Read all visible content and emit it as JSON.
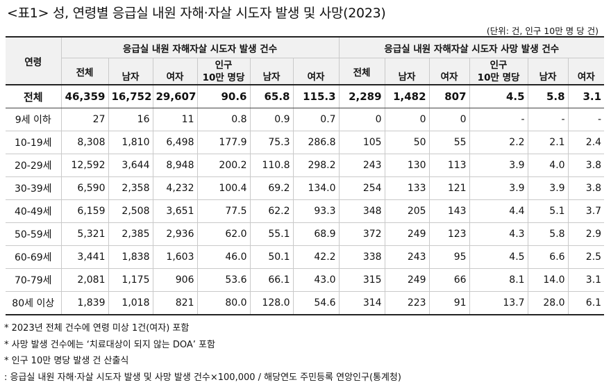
{
  "title": "<표1> 성, 연령별 응급실 내원 자해·자살 시도자 발생 및 사망(2023)",
  "unit": "(단위: 건, 인구 10만 명 당 건)",
  "header": {
    "age": "연령",
    "group_attempts": "응급실 내원 자해자살 시도자 발생 건수",
    "group_deaths": "응급실 내원 자해자살 시도자 사망 발생 건수",
    "total": "전체",
    "male": "남자",
    "female": "여자",
    "per_pop_line1": "인구",
    "per_pop_line2": "10만 명당"
  },
  "rows": [
    {
      "age": "전체",
      "cells": [
        "46,359",
        "16,752",
        "29,607",
        "90.6",
        "65.8",
        "115.3",
        "2,289",
        "1,482",
        "807",
        "4.5",
        "5.8",
        "3.1"
      ]
    },
    {
      "age": "9세 이하",
      "cells": [
        "27",
        "16",
        "11",
        "0.8",
        "0.9",
        "0.7",
        "0",
        "0",
        "0",
        "-",
        "-",
        "-"
      ]
    },
    {
      "age": "10-19세",
      "cells": [
        "8,308",
        "1,810",
        "6,498",
        "177.9",
        "75.3",
        "286.8",
        "105",
        "50",
        "55",
        "2.2",
        "2.1",
        "2.4"
      ]
    },
    {
      "age": "20-29세",
      "cells": [
        "12,592",
        "3,644",
        "8,948",
        "200.2",
        "110.8",
        "298.2",
        "243",
        "130",
        "113",
        "3.9",
        "4.0",
        "3.8"
      ]
    },
    {
      "age": "30-39세",
      "cells": [
        "6,590",
        "2,358",
        "4,232",
        "100.4",
        "69.2",
        "134.0",
        "254",
        "133",
        "121",
        "3.9",
        "3.9",
        "3.8"
      ]
    },
    {
      "age": "40-49세",
      "cells": [
        "6,159",
        "2,508",
        "3,651",
        "77.5",
        "62.2",
        "93.3",
        "348",
        "205",
        "143",
        "4.4",
        "5.1",
        "3.7"
      ]
    },
    {
      "age": "50-59세",
      "cells": [
        "5,321",
        "2,385",
        "2,936",
        "62.0",
        "55.1",
        "68.9",
        "372",
        "249",
        "123",
        "4.3",
        "5.8",
        "2.9"
      ]
    },
    {
      "age": "60-69세",
      "cells": [
        "3,441",
        "1,838",
        "1,603",
        "46.0",
        "50.1",
        "42.2",
        "338",
        "243",
        "95",
        "4.5",
        "6.6",
        "2.5"
      ]
    },
    {
      "age": "70-79세",
      "cells": [
        "2,081",
        "1,175",
        "906",
        "53.6",
        "66.1",
        "43.0",
        "315",
        "249",
        "66",
        "8.1",
        "14.0",
        "3.1"
      ]
    },
    {
      "age": "80세 이상",
      "cells": [
        "1,839",
        "1,018",
        "821",
        "80.0",
        "128.0",
        "54.6",
        "314",
        "223",
        "91",
        "13.7",
        "28.0",
        "6.1"
      ]
    }
  ],
  "notes": [
    "* 2023년 전체 건수에 연령 미상 1건(여자) 포함",
    "* 사망 발생 건수에는 ‘치료대상이 되지 않는 DOA’ 포함",
    "* 인구 10만 명당 발생 건 산출식",
    " : 응급실 내원 자해·자살 시도자 발생 및 사망 발생 건수×100,000 / 해당연도 주민등록 연앙인구(통계청)"
  ]
}
